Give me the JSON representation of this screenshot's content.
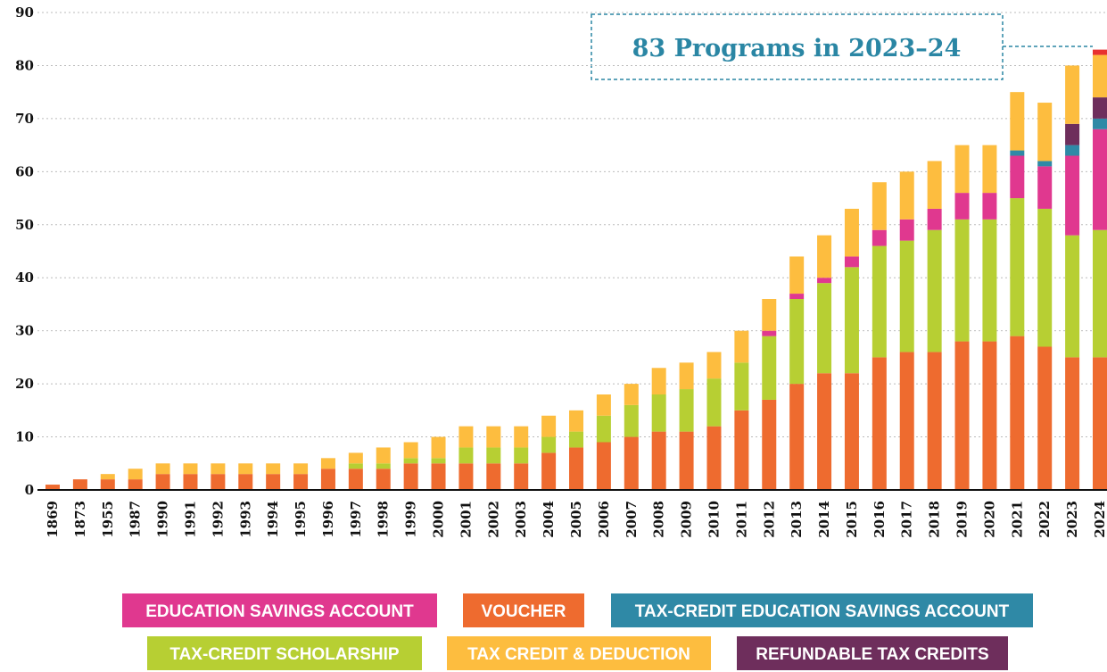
{
  "chart_data": {
    "type": "stacked_bar",
    "annotation": "83 Programs in 2023–24",
    "categories": [
      "1869",
      "1873",
      "1955",
      "1987",
      "1990",
      "1991",
      "1992",
      "1993",
      "1994",
      "1995",
      "1996",
      "1997",
      "1998",
      "1999",
      "2000",
      "2001",
      "2002",
      "2003",
      "2004",
      "2005",
      "2006",
      "2007",
      "2008",
      "2009",
      "2010",
      "2011",
      "2012",
      "2013",
      "2014",
      "2015",
      "2016",
      "2017",
      "2018",
      "2019",
      "2020",
      "2021",
      "2022",
      "2023",
      "2024"
    ],
    "series": [
      {
        "name": "VOUCHER",
        "color": "#ee6b2f",
        "values": [
          1,
          2,
          2,
          2,
          3,
          3,
          3,
          3,
          3,
          3,
          4,
          4,
          4,
          5,
          5,
          5,
          5,
          5,
          7,
          8,
          9,
          10,
          11,
          11,
          12,
          15,
          17,
          20,
          22,
          22,
          25,
          26,
          26,
          28,
          28,
          29,
          27,
          25,
          25
        ]
      },
      {
        "name": "TAX-CREDIT SCHOLARSHIP",
        "color": "#b7cf33",
        "values": [
          0,
          0,
          0,
          0,
          0,
          0,
          0,
          0,
          0,
          0,
          0,
          1,
          1,
          1,
          1,
          3,
          3,
          3,
          3,
          3,
          5,
          6,
          7,
          8,
          9,
          9,
          12,
          16,
          17,
          20,
          21,
          21,
          23,
          23,
          23,
          26,
          26,
          23,
          24
        ]
      },
      {
        "name": "EDUCATION SAVINGS ACCOUNT",
        "color": "#e0388f",
        "values": [
          0,
          0,
          0,
          0,
          0,
          0,
          0,
          0,
          0,
          0,
          0,
          0,
          0,
          0,
          0,
          0,
          0,
          0,
          0,
          0,
          0,
          0,
          0,
          0,
          0,
          0,
          1,
          1,
          1,
          2,
          3,
          4,
          4,
          5,
          5,
          8,
          8,
          15,
          19
        ]
      },
      {
        "name": "TAX-CREDIT EDUCATION SAVINGS ACCOUNT",
        "color": "#2f89a6",
        "values": [
          0,
          0,
          0,
          0,
          0,
          0,
          0,
          0,
          0,
          0,
          0,
          0,
          0,
          0,
          0,
          0,
          0,
          0,
          0,
          0,
          0,
          0,
          0,
          0,
          0,
          0,
          0,
          0,
          0,
          0,
          0,
          0,
          0,
          0,
          0,
          1,
          1,
          2,
          2
        ]
      },
      {
        "name": "REFUNDABLE TAX CREDITS",
        "color": "#6e2e5c",
        "values": [
          0,
          0,
          0,
          0,
          0,
          0,
          0,
          0,
          0,
          0,
          0,
          0,
          0,
          0,
          0,
          0,
          0,
          0,
          0,
          0,
          0,
          0,
          0,
          0,
          0,
          0,
          0,
          0,
          0,
          0,
          0,
          0,
          0,
          0,
          0,
          0,
          0,
          4,
          4
        ]
      },
      {
        "name": "TAX CREDIT & DEDUCTION",
        "color": "#fdbd3f",
        "values": [
          0,
          0,
          1,
          2,
          2,
          2,
          2,
          2,
          2,
          2,
          2,
          2,
          3,
          3,
          4,
          4,
          4,
          4,
          4,
          4,
          4,
          4,
          5,
          5,
          5,
          6,
          6,
          7,
          8,
          9,
          9,
          9,
          9,
          9,
          9,
          11,
          11,
          11,
          8
        ]
      },
      {
        "color": "#e8312f",
        "values": [
          0,
          0,
          0,
          0,
          0,
          0,
          0,
          0,
          0,
          0,
          0,
          0,
          0,
          0,
          0,
          0,
          0,
          0,
          0,
          0,
          0,
          0,
          0,
          0,
          0,
          0,
          0,
          0,
          0,
          0,
          0,
          0,
          0,
          0,
          0,
          0,
          0,
          0,
          1
        ]
      }
    ],
    "ylim": [
      0,
      90
    ],
    "yticks": [
      0,
      10,
      20,
      30,
      40,
      50,
      60,
      70,
      80,
      90
    ],
    "grid": true
  }
}
